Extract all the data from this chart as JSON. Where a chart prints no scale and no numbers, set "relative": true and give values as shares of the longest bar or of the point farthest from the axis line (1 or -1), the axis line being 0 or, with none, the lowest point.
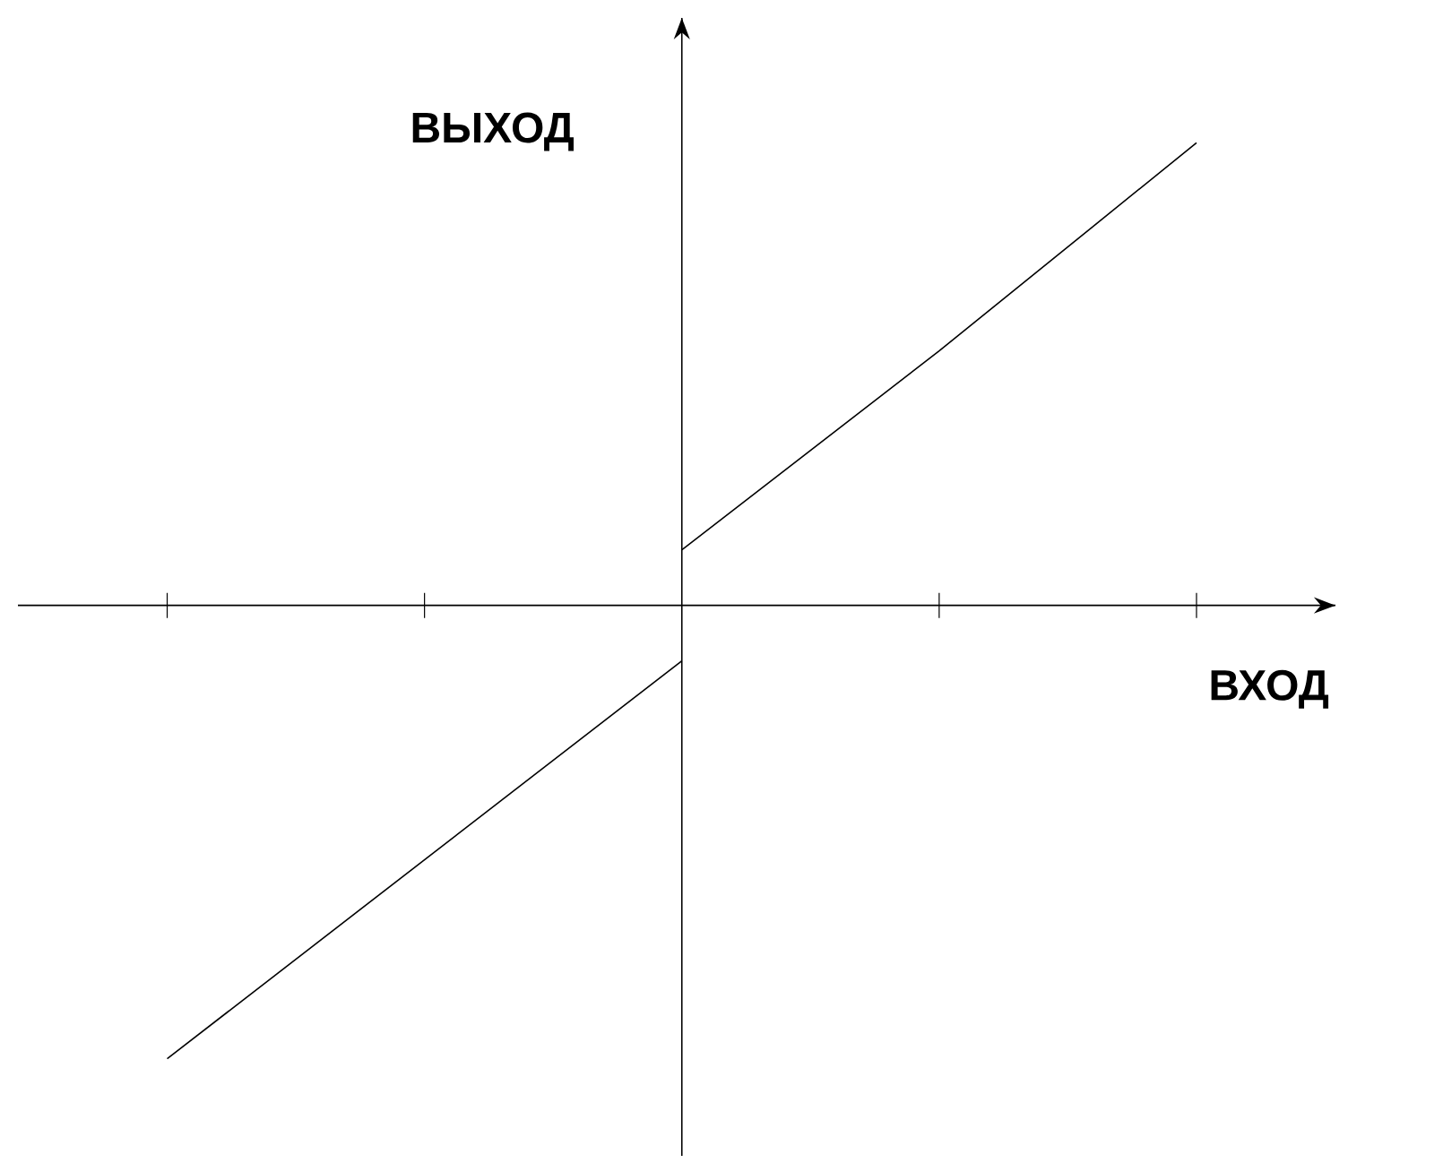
{
  "chart_data": {
    "type": "line",
    "xlabel": "ВХОД",
    "ylabel": "ВЫХОД",
    "relative": true,
    "categories": [
      null,
      null,
      null,
      null,
      null
    ],
    "series": [
      {
        "color": "#000000",
        "values": [
          -0.98,
          -0.55,
          -0.12,
          null,
          null
        ]
      },
      {
        "color": "#000000",
        "values": [
          null,
          null,
          0.12,
          0.55,
          1
        ]
      }
    ]
  }
}
